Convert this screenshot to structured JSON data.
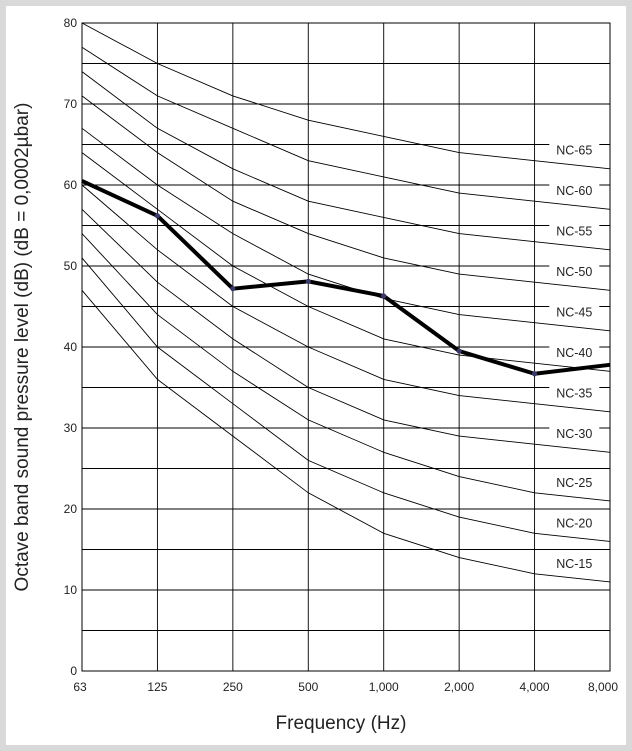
{
  "chart_data": {
    "type": "line",
    "x_labels": [
      "63",
      "125",
      "250",
      "500",
      "1,000",
      "2,000",
      "4,000",
      "8,000"
    ],
    "y_ticks": [
      "0",
      "10",
      "20",
      "30",
      "40",
      "50",
      "60",
      "70",
      "80"
    ],
    "ylim": [
      0,
      80
    ],
    "y_grid_step": 5,
    "xlabel": "Frequency (Hz)",
    "ylabel": "Octave band sound pressure level (dB) (dB = 0,0002µbar)",
    "grid": true,
    "nc_curves": [
      {
        "name": "NC-65",
        "values": [
          80,
          75,
          71,
          68,
          66,
          64,
          63,
          62
        ]
      },
      {
        "name": "NC-60",
        "values": [
          77,
          71,
          67,
          63,
          61,
          59,
          58,
          57
        ]
      },
      {
        "name": "NC-55",
        "values": [
          74,
          67,
          62,
          58,
          56,
          54,
          53,
          52
        ]
      },
      {
        "name": "NC-50",
        "values": [
          71,
          64,
          58,
          54,
          51,
          49,
          48,
          47
        ]
      },
      {
        "name": "NC-45",
        "values": [
          67,
          60,
          54,
          49,
          46,
          44,
          43,
          42
        ]
      },
      {
        "name": "NC-40",
        "values": [
          64,
          57,
          50,
          45,
          41,
          39,
          38,
          37
        ]
      },
      {
        "name": "NC-35",
        "values": [
          60,
          52,
          45,
          40,
          36,
          34,
          33,
          32
        ]
      },
      {
        "name": "NC-30",
        "values": [
          57,
          48,
          41,
          35,
          31,
          29,
          28,
          27
        ]
      },
      {
        "name": "NC-25",
        "values": [
          54,
          44,
          37,
          31,
          27,
          24,
          22,
          21
        ]
      },
      {
        "name": "NC-20",
        "values": [
          51,
          40,
          33,
          26,
          22,
          19,
          17,
          16
        ]
      },
      {
        "name": "NC-15",
        "values": [
          47,
          36,
          29,
          22,
          17,
          14,
          12,
          11
        ]
      }
    ],
    "series": [
      {
        "values": [
          60.5,
          56.2,
          47.2,
          48.1,
          46.3,
          39.5,
          36.7,
          37.8
        ]
      }
    ],
    "colors": {
      "measured": "#000000",
      "marker": "#3a3a6a",
      "nc": "#000000",
      "grid": "#000000"
    }
  }
}
